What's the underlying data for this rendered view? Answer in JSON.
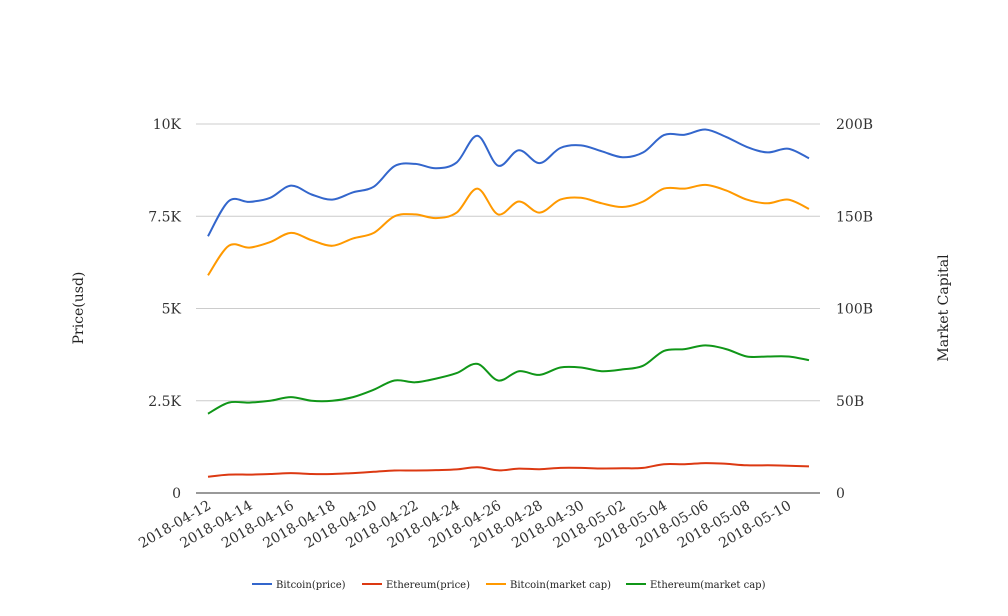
{
  "chart_data": {
    "type": "line",
    "title": "",
    "xlabel": "",
    "ylabel": "Price(usd)",
    "y2label": "Market Capital",
    "ylim": [
      0,
      10000
    ],
    "y2lim": [
      0,
      200
    ],
    "grid": true,
    "legend_position": "bottom",
    "x_tick_labels": [
      "2018-04-12",
      "2018-04-14",
      "2018-04-16",
      "2018-04-18",
      "2018-04-20",
      "2018-04-22",
      "2018-04-24",
      "2018-04-26",
      "2018-04-28",
      "2018-04-30",
      "2018-05-02",
      "2018-05-04",
      "2018-05-06",
      "2018-05-08",
      "2018-05-10"
    ],
    "y_tick_labels": [
      {
        "value": 0,
        "label": "0"
      },
      {
        "value": 2500,
        "label": "2.5K"
      },
      {
        "value": 5000,
        "label": "5K"
      },
      {
        "value": 7500,
        "label": "7.5K"
      },
      {
        "value": 10000,
        "label": "10K"
      }
    ],
    "y2_tick_labels": [
      {
        "value": 0,
        "label": "0"
      },
      {
        "value": 50,
        "label": "50B"
      },
      {
        "value": 100,
        "label": "100B"
      },
      {
        "value": 150,
        "label": "150B"
      },
      {
        "value": 200,
        "label": "200B"
      }
    ],
    "x": [
      "2018-04-12",
      "2018-04-13",
      "2018-04-14",
      "2018-04-15",
      "2018-04-16",
      "2018-04-17",
      "2018-04-18",
      "2018-04-19",
      "2018-04-20",
      "2018-04-21",
      "2018-04-22",
      "2018-04-23",
      "2018-04-24",
      "2018-04-25",
      "2018-04-26",
      "2018-04-27",
      "2018-04-28",
      "2018-04-29",
      "2018-04-30",
      "2018-05-01",
      "2018-05-02",
      "2018-05-03",
      "2018-05-04",
      "2018-05-05",
      "2018-05-06",
      "2018-05-07",
      "2018-05-08",
      "2018-05-09",
      "2018-05-10",
      "2018-05-11"
    ],
    "series": [
      {
        "name": "Bitcoin(price)",
        "axis": "left",
        "color": "#3366cc",
        "values": [
          6960,
          7910,
          7890,
          8000,
          8330,
          8090,
          7950,
          8150,
          8300,
          8860,
          8920,
          8800,
          8960,
          9680,
          8870,
          9290,
          8940,
          9350,
          9420,
          9260,
          9100,
          9230,
          9700,
          9710,
          9850,
          9650,
          9380,
          9230,
          9330,
          9070
        ]
      },
      {
        "name": "Ethereum(price)",
        "axis": "left",
        "color": "#dc3912",
        "values": [
          440,
          500,
          500,
          515,
          540,
          515,
          515,
          540,
          575,
          610,
          610,
          620,
          640,
          700,
          615,
          660,
          645,
          680,
          680,
          665,
          670,
          680,
          780,
          780,
          810,
          790,
          750,
          750,
          740,
          720
        ]
      },
      {
        "name": "Bitcoin(market cap)",
        "axis": "right",
        "color": "#ff9900",
        "values": [
          118,
          134,
          133,
          136,
          141,
          137,
          134,
          138,
          141,
          150,
          151,
          149,
          152,
          165,
          151,
          158,
          152,
          159,
          160,
          157,
          155,
          158,
          165,
          165,
          167,
          164,
          159,
          157,
          159,
          154
        ]
      },
      {
        "name": "Ethereum(market cap)",
        "axis": "right",
        "color": "#109618",
        "values": [
          43,
          49,
          49,
          50,
          52,
          50,
          50,
          52,
          56,
          61,
          60,
          62,
          65,
          70,
          61,
          66,
          64,
          68,
          68,
          66,
          67,
          69,
          77,
          78,
          80,
          78,
          74,
          74,
          74,
          72
        ]
      }
    ]
  }
}
